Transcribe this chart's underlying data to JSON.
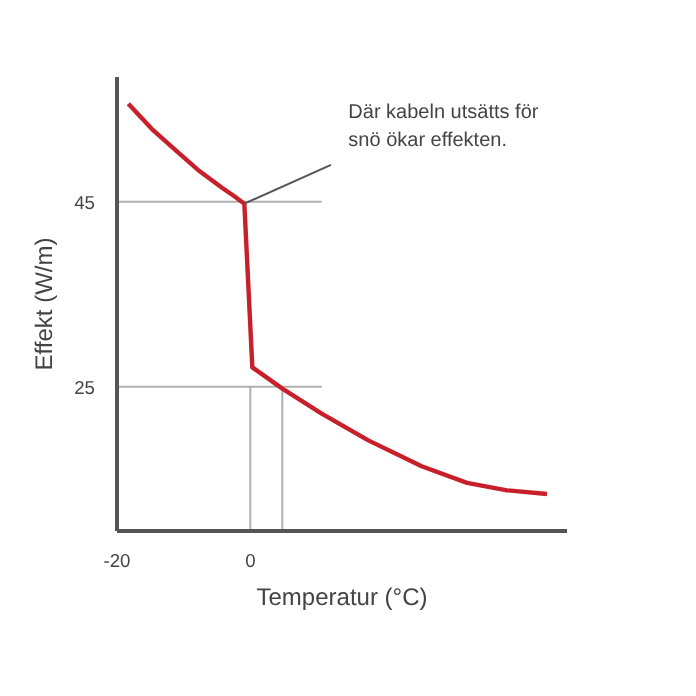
{
  "chart_data": {
    "type": "line",
    "xlabel": "Temperatur (°C)",
    "ylabel": "Effekt (W/m)",
    "x": [
      -18.3,
      -14.8,
      -11.1,
      -7.6,
      -4.2,
      -2.4,
      -0.9,
      0.3,
      4.8,
      10.7,
      17.7,
      25.7,
      32.5,
      38.5,
      44.5
    ],
    "series": [
      {
        "color": "#c8202a",
        "values": [
          55.6,
          52.9,
          50.5,
          48.3,
          46.5,
          45.6,
          44.8,
          27.1,
          24.8,
          22.1,
          19.2,
          16.4,
          14.6,
          13.8,
          13.4
        ]
      }
    ],
    "xlim": [
      -20,
      47.5
    ],
    "ylim": [
      9.4,
      58.5
    ],
    "xticks": [
      -20,
      0
    ],
    "yticks": [
      45,
      25
    ],
    "ref_lines": [
      {
        "axis": "y",
        "value": 45,
        "color": "#b0b0b0"
      },
      {
        "axis": "y",
        "value": 25,
        "color": "#b0b0b0"
      },
      {
        "axis": "x",
        "value": 0,
        "color": "#b0b0b0"
      },
      {
        "axis": "x",
        "value": 4.8,
        "color": "#b0b0b0"
      }
    ],
    "annotations": [
      {
        "text": "Där kabeln utsätts för\nsnö ökar effekten.",
        "x": -0.9,
        "y": 44.8
      }
    ],
    "grid": false,
    "marker": "none",
    "line_style": "solid"
  }
}
